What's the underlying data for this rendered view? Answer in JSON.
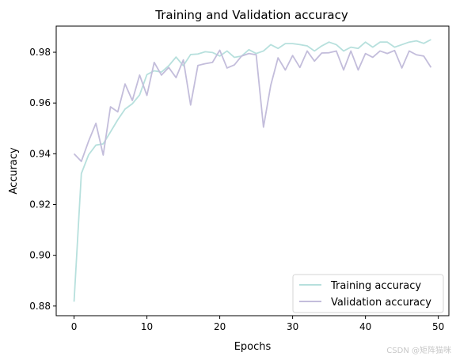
{
  "chart_data": {
    "type": "line",
    "title": "Training and Validation accuracy",
    "xlabel": "Epochs",
    "ylabel": "Accuracy",
    "xlim": [
      -2.45,
      51.45
    ],
    "ylim": [
      0.8762,
      0.9903
    ],
    "xticks": [
      0,
      10,
      20,
      30,
      40,
      50
    ],
    "yticks": [
      0.88,
      0.9,
      0.92,
      0.94,
      0.96,
      0.98
    ],
    "ytick_labels": [
      "0.88",
      "0.90",
      "0.92",
      "0.94",
      "0.96",
      "0.98"
    ],
    "grid": false,
    "legend_position": "lower-right",
    "x": [
      0,
      1,
      2,
      3,
      4,
      5,
      6,
      7,
      8,
      9,
      10,
      11,
      12,
      13,
      14,
      15,
      16,
      17,
      18,
      19,
      20,
      21,
      22,
      23,
      24,
      25,
      26,
      27,
      28,
      29,
      30,
      31,
      32,
      33,
      34,
      35,
      36,
      37,
      38,
      39,
      40,
      41,
      42,
      43,
      44,
      45,
      46,
      47,
      48,
      49
    ],
    "series": [
      {
        "name": "Training accuracy",
        "color": "#b7e0dd",
        "values": [
          0.8817,
          0.9322,
          0.9396,
          0.9434,
          0.9439,
          0.9486,
          0.9534,
          0.9576,
          0.9597,
          0.9632,
          0.9712,
          0.9727,
          0.9722,
          0.9747,
          0.9781,
          0.9747,
          0.9791,
          0.9793,
          0.9802,
          0.9799,
          0.9785,
          0.9805,
          0.978,
          0.9785,
          0.981,
          0.9795,
          0.9805,
          0.983,
          0.9815,
          0.9834,
          0.9834,
          0.983,
          0.9825,
          0.9805,
          0.9825,
          0.984,
          0.983,
          0.9805,
          0.982,
          0.9815,
          0.984,
          0.982,
          0.984,
          0.984,
          0.982,
          0.983,
          0.984,
          0.9845,
          0.9835,
          0.985
        ]
      },
      {
        "name": "Validation accuracy",
        "color": "#c3bddb",
        "values": [
          0.94,
          0.937,
          0.945,
          0.952,
          0.9395,
          0.9585,
          0.9565,
          0.9675,
          0.961,
          0.971,
          0.963,
          0.976,
          0.971,
          0.974,
          0.97,
          0.977,
          0.9592,
          0.9748,
          0.9755,
          0.976,
          0.9808,
          0.9738,
          0.975,
          0.9785,
          0.9795,
          0.979,
          0.9505,
          0.967,
          0.9778,
          0.973,
          0.9787,
          0.974,
          0.9805,
          0.9765,
          0.9797,
          0.9798,
          0.9805,
          0.973,
          0.9805,
          0.973,
          0.9795,
          0.978,
          0.9805,
          0.9795,
          0.9807,
          0.9738,
          0.9805,
          0.979,
          0.9785,
          0.974
        ]
      }
    ]
  },
  "watermark": "CSDN @矩阵猫咪"
}
